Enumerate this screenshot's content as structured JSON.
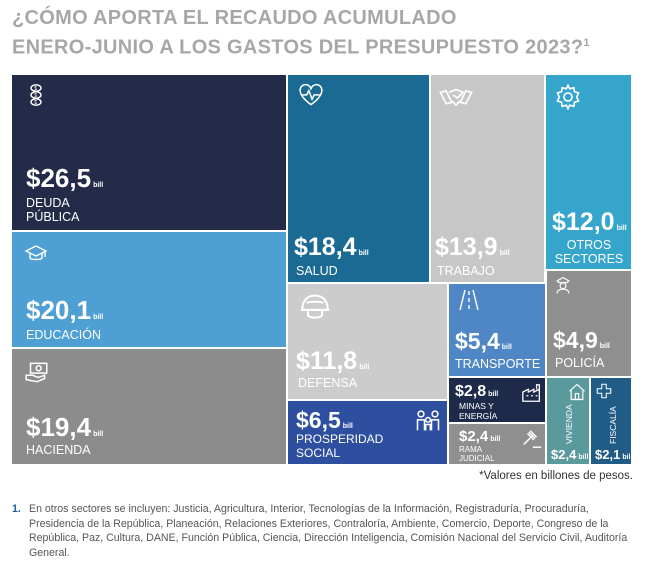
{
  "title": {
    "line1": "¿CÓMO APORTA EL RECAUDO ACUMULADO",
    "line2": "ENERO-JUNIO A LOS GASTOS DEL PRESUPUESTO 2023?",
    "footnote_marker": "1"
  },
  "chart_data": {
    "type": "treemap",
    "unit": "bill",
    "note": "*Valores en billones de pesos.",
    "items": [
      {
        "label": "DEUDA PÚBLICA",
        "value_text": "$26,5",
        "value": 26.5,
        "unit": "bill",
        "color": "#232b48",
        "icon": "coins-icon"
      },
      {
        "label": "EDUCACIÓN",
        "value_text": "$20,1",
        "value": 20.1,
        "unit": "bill",
        "color": "#4e9fd4",
        "icon": "graduation-cap-icon"
      },
      {
        "label": "HACIENDA",
        "value_text": "$19,4",
        "value": 19.4,
        "unit": "bill",
        "color": "#8c8c8c",
        "icon": "money-hand-icon"
      },
      {
        "label": "SALUD",
        "value_text": "$18,4",
        "value": 18.4,
        "unit": "bill",
        "color": "#1a6a93",
        "icon": "heart-pulse-icon"
      },
      {
        "label": "TRABAJO",
        "value_text": "$13,9",
        "value": 13.9,
        "unit": "bill",
        "color": "#c7c7c7",
        "icon": "handshake-icon"
      },
      {
        "label": "OTROS SECTORES",
        "value_text": "$12,0",
        "value": 12.0,
        "unit": "bill",
        "color": "#35a5cc",
        "icon": "gear-icon"
      },
      {
        "label": "DEFENSA",
        "value_text": "$11,8",
        "value": 11.8,
        "unit": "bill",
        "color": "#cccccc",
        "icon": "helmet-icon"
      },
      {
        "label": "TRANSPORTE",
        "value_text": "$5,4",
        "value": 5.4,
        "unit": "bill",
        "color": "#4f86c6",
        "icon": "road-icon"
      },
      {
        "label": "POLICÍA",
        "value_text": "$4,9",
        "value": 4.9,
        "unit": "bill",
        "color": "#8f8f8f",
        "icon": "police-icon"
      },
      {
        "label": "PROSPERIDAD SOCIAL",
        "value_text": "$6,5",
        "value": 6.5,
        "unit": "bill",
        "color": "#2e4f9f",
        "icon": "family-icon"
      },
      {
        "label": "MINAS Y ENERGÍA",
        "value_text": "$2,8",
        "value": 2.8,
        "unit": "bill",
        "color": "#1e2a4a",
        "icon": "factory-icon"
      },
      {
        "label": "RAMA JUDICIAL",
        "value_text": "$2,4",
        "value": 2.4,
        "unit": "bill",
        "color": "#8f8f8f",
        "icon": "gavel-icon"
      },
      {
        "label": "VIVIENDA",
        "value_text": "$2,4",
        "value": 2.4,
        "unit": "bill",
        "color": "#5a9a9d",
        "icon": "house-icon"
      },
      {
        "label": "FISCALÍA",
        "value_text": "$2,1",
        "value": 2.1,
        "unit": "bill",
        "color": "#215c86",
        "icon": "cross-icon"
      }
    ]
  },
  "footnote": {
    "marker": "1.",
    "text": "En otros sectores se incluyen: Justicia, Agricultura, Interior, Tecnologías de la Información, Registraduría, Procuraduría, Presidencia de la República, Planeación, Relaciones Exteriores, Contraloría, Ambiente, Comercio, Deporte, Congreso de la República, Paz, Cultura, DANE, Función Pública, Ciencia, Dirección Inteligencia, Comisión Nacional del Servicio Civil, Auditoría General."
  }
}
